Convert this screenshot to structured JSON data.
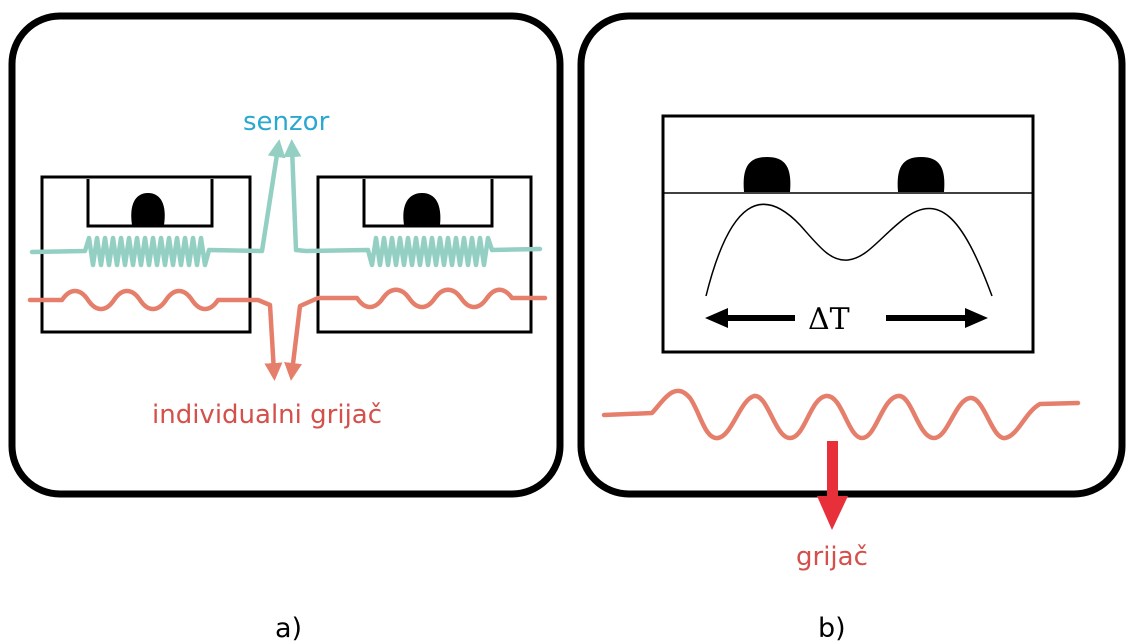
{
  "panel_a": {
    "sensor_label": "senzor",
    "heater_label": "individualni grijač",
    "caption": "a)"
  },
  "panel_b": {
    "delta_label": "ΔT",
    "heater_label": "grijač",
    "caption": "b)"
  },
  "colors": {
    "sensor": "#93cfc3",
    "sensor_text": "#2aa8cf",
    "heater": "#e57f6c",
    "heater_text": "#d4504a",
    "arrow_red": "#e8303a",
    "outline": "#000000"
  }
}
